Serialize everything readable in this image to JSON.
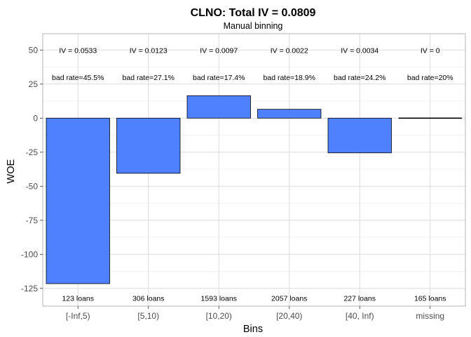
{
  "chart_data": {
    "type": "bar",
    "title": "CLNO: Total IV = 0.0809",
    "subtitle": "Manual binning",
    "xlabel": "Bins",
    "ylabel": "WOE",
    "ylim": [
      -138,
      62
    ],
    "yticks": [
      "-125",
      "-100",
      "-75",
      "-50",
      "-25",
      "0",
      "25",
      "50"
    ],
    "categories": [
      "[-Inf,5)",
      "[5,10)",
      "[10,20)",
      "[20,40)",
      "[40, Inf)",
      "missing"
    ],
    "values": [
      -121.5,
      -40.5,
      16.5,
      6.5,
      -25.5,
      0
    ],
    "iv_labels": [
      "IV = 0.0533",
      "IV = 0.0123",
      "IV = 0.0097",
      "IV = 0.0022",
      "IV = 0.0034",
      "IV = 0"
    ],
    "bad_rate_labels": [
      "bad rate=45.5%",
      "bad rate=27.1%",
      "bad rate=17.4%",
      "bad rate=18.9%",
      "bad rate=24.2%",
      "bad rate=20%"
    ],
    "count_labels": [
      "123 loans",
      "306 loans",
      "1593 loans",
      "2057 loans",
      "227 loans",
      "165 loans"
    ],
    "grid": true,
    "colors": {
      "bar": "#4f81ff",
      "bar_outline": "#000000",
      "panel_border": "#b3b3b3"
    }
  }
}
